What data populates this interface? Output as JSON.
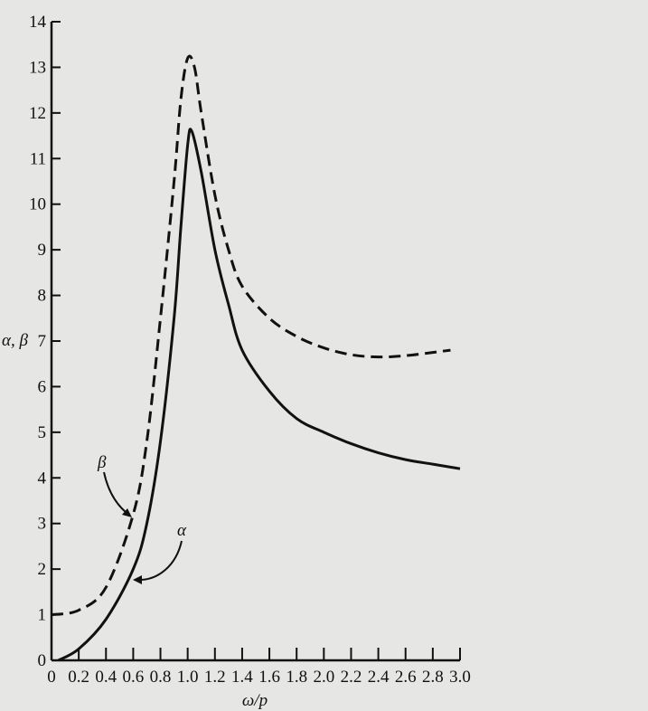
{
  "chart_data": {
    "type": "line",
    "title": "",
    "xlabel": "ω/p",
    "ylabel": "α, β",
    "xlim": [
      0,
      3.0
    ],
    "ylim": [
      0,
      14
    ],
    "grid": false,
    "legend": "none; curves labelled with arrows",
    "x_ticks": [
      "0",
      "0.2",
      "0.4",
      "0.6",
      "0.8",
      "1.0",
      "1.2",
      "1.4",
      "1.6",
      "1.8",
      "2.0",
      "2.2",
      "2.4",
      "2.6",
      "2.8",
      "3.0"
    ],
    "y_ticks": [
      "0",
      "1",
      "2",
      "3",
      "4",
      "5",
      "6",
      "7",
      "8",
      "9",
      "10",
      "11",
      "12",
      "13",
      "14"
    ],
    "series": [
      {
        "name": "α",
        "style": "solid",
        "color": "#111111",
        "x": [
          0.05,
          0.2,
          0.4,
          0.6,
          0.7,
          0.8,
          0.9,
          0.95,
          1.0,
          1.03,
          1.1,
          1.2,
          1.3,
          1.4,
          1.6,
          1.8,
          2.0,
          2.2,
          2.4,
          2.6,
          2.8,
          3.0
        ],
        "y": [
          0,
          0.25,
          0.9,
          2.0,
          3.0,
          4.8,
          7.5,
          9.5,
          11.3,
          11.6,
          10.7,
          9.0,
          7.8,
          6.8,
          5.9,
          5.3,
          5.0,
          4.75,
          4.55,
          4.4,
          4.3,
          4.2
        ]
      },
      {
        "name": "β",
        "style": "dashed",
        "color": "#111111",
        "x": [
          0,
          0.2,
          0.4,
          0.6,
          0.7,
          0.8,
          0.9,
          0.95,
          1.0,
          1.05,
          1.1,
          1.2,
          1.3,
          1.4,
          1.6,
          1.8,
          2.0,
          2.2,
          2.4,
          2.6,
          2.8,
          2.93
        ],
        "y": [
          1.0,
          1.1,
          1.6,
          3.2,
          4.8,
          7.5,
          10.5,
          12.3,
          13.2,
          13.0,
          12.0,
          10.2,
          9.0,
          8.2,
          7.5,
          7.1,
          6.85,
          6.7,
          6.65,
          6.68,
          6.75,
          6.8
        ]
      }
    ],
    "annotations": [
      {
        "text": "β",
        "points_to_series": "β",
        "at_x": 0.6
      },
      {
        "text": "α",
        "points_to_series": "α",
        "at_x": 0.6
      }
    ]
  }
}
